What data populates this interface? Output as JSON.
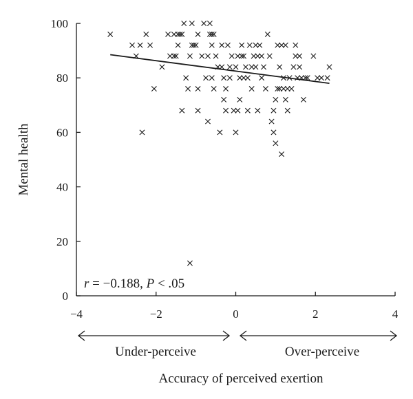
{
  "chart_data": {
    "type": "scatter",
    "title": "",
    "xlabel": "Accuracy of perceived exertion",
    "ylabel": "Mental health",
    "xlim": [
      -4,
      4
    ],
    "ylim": [
      0,
      100
    ],
    "xticks": [
      -4,
      -2,
      0,
      2,
      4
    ],
    "xtick_labels": [
      "−4",
      "−2",
      "0",
      "2",
      "4"
    ],
    "yticks": [
      0,
      20,
      40,
      60,
      80,
      100
    ],
    "ytick_labels": [
      "0",
      "20",
      "40",
      "60",
      "80",
      "100"
    ],
    "grid": false,
    "legend": null,
    "marker": "x",
    "annotation": {
      "r_symbol": "r",
      "r_value": " = −0.188, ",
      "p_symbol": "P",
      "p_value": " < .05"
    },
    "direction_labels": {
      "left": "Under-perceive",
      "right": "Over-perceive"
    },
    "trendline": {
      "x": [
        -3.15,
        2.35
      ],
      "y": [
        88.5,
        78.0
      ]
    },
    "points": [
      [
        -3.15,
        96
      ],
      [
        -2.6,
        92
      ],
      [
        -2.5,
        88
      ],
      [
        -2.4,
        92
      ],
      [
        -2.35,
        60
      ],
      [
        -2.25,
        96
      ],
      [
        -2.15,
        92
      ],
      [
        -2.05,
        76
      ],
      [
        -1.85,
        84
      ],
      [
        -1.7,
        96
      ],
      [
        -1.65,
        88
      ],
      [
        -1.55,
        88
      ],
      [
        -1.55,
        96
      ],
      [
        -1.5,
        88
      ],
      [
        -1.45,
        96
      ],
      [
        -1.45,
        92
      ],
      [
        -1.4,
        96
      ],
      [
        -1.35,
        96
      ],
      [
        -1.35,
        68
      ],
      [
        -1.3,
        100
      ],
      [
        -1.25,
        80
      ],
      [
        -1.2,
        76
      ],
      [
        -1.15,
        88
      ],
      [
        -1.15,
        12
      ],
      [
        -1.1,
        100
      ],
      [
        -1.1,
        92
      ],
      [
        -1.05,
        92
      ],
      [
        -1.0,
        92
      ],
      [
        -0.95,
        96
      ],
      [
        -0.95,
        76
      ],
      [
        -0.95,
        68
      ],
      [
        -0.85,
        88
      ],
      [
        -0.8,
        100
      ],
      [
        -0.75,
        80
      ],
      [
        -0.7,
        64
      ],
      [
        -0.7,
        88
      ],
      [
        -0.65,
        96
      ],
      [
        -0.6,
        92
      ],
      [
        -0.6,
        96
      ],
      [
        -0.65,
        100
      ],
      [
        -0.6,
        80
      ],
      [
        -0.55,
        96
      ],
      [
        -0.55,
        76
      ],
      [
        -0.5,
        88
      ],
      [
        -0.45,
        84
      ],
      [
        -0.4,
        60
      ],
      [
        -0.35,
        92
      ],
      [
        -0.35,
        84
      ],
      [
        -0.3,
        80
      ],
      [
        -0.3,
        72
      ],
      [
        -0.25,
        68
      ],
      [
        -0.25,
        76
      ],
      [
        -0.2,
        92
      ],
      [
        -0.15,
        84
      ],
      [
        -0.15,
        80
      ],
      [
        -0.1,
        88
      ],
      [
        -0.05,
        68
      ],
      [
        0.0,
        84
      ],
      [
        0.0,
        60
      ],
      [
        0.05,
        88
      ],
      [
        0.05,
        68
      ],
      [
        0.1,
        80
      ],
      [
        0.1,
        72
      ],
      [
        0.15,
        88
      ],
      [
        0.15,
        92
      ],
      [
        0.2,
        80
      ],
      [
        0.2,
        88
      ],
      [
        0.25,
        84
      ],
      [
        0.3,
        68
      ],
      [
        0.3,
        80
      ],
      [
        0.35,
        92
      ],
      [
        0.4,
        84
      ],
      [
        0.4,
        76
      ],
      [
        0.45,
        88
      ],
      [
        0.5,
        84
      ],
      [
        0.5,
        92
      ],
      [
        0.55,
        68
      ],
      [
        0.55,
        88
      ],
      [
        0.6,
        92
      ],
      [
        0.65,
        80
      ],
      [
        0.65,
        88
      ],
      [
        0.7,
        84
      ],
      [
        0.75,
        76
      ],
      [
        0.8,
        96
      ],
      [
        0.85,
        88
      ],
      [
        0.9,
        64
      ],
      [
        0.95,
        68
      ],
      [
        0.95,
        60
      ],
      [
        1.0,
        56
      ],
      [
        1.0,
        72
      ],
      [
        1.05,
        76
      ],
      [
        1.05,
        92
      ],
      [
        1.1,
        84
      ],
      [
        1.1,
        76
      ],
      [
        1.15,
        52
      ],
      [
        1.15,
        92
      ],
      [
        1.2,
        76
      ],
      [
        1.2,
        80
      ],
      [
        1.25,
        72
      ],
      [
        1.25,
        92
      ],
      [
        1.3,
        68
      ],
      [
        1.3,
        76
      ],
      [
        1.35,
        80
      ],
      [
        1.4,
        76
      ],
      [
        1.45,
        84
      ],
      [
        1.5,
        88
      ],
      [
        1.5,
        92
      ],
      [
        1.55,
        80
      ],
      [
        1.6,
        84
      ],
      [
        1.6,
        88
      ],
      [
        1.65,
        80
      ],
      [
        1.7,
        72
      ],
      [
        1.75,
        80
      ],
      [
        1.8,
        80
      ],
      [
        1.95,
        88
      ],
      [
        2.05,
        80
      ],
      [
        2.15,
        80
      ],
      [
        2.3,
        80
      ],
      [
        2.35,
        84
      ]
    ]
  }
}
